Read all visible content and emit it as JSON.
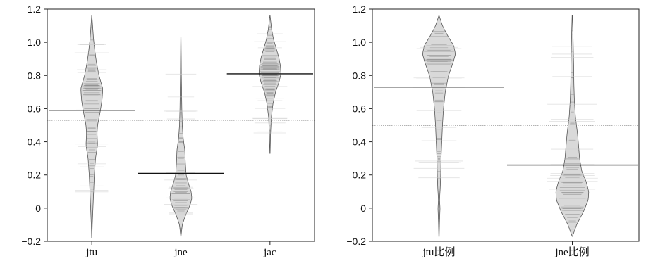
{
  "chart_data": [
    {
      "type": "beanplot",
      "categories": [
        "jtu",
        "jne",
        "jac"
      ],
      "ylim": [
        -0.2,
        1.2
      ],
      "yticks": [
        -0.2,
        0,
        0.2,
        0.4,
        0.6,
        0.8,
        1.0,
        1.2
      ],
      "ytick_labels": [
        "−0.2",
        "0",
        "0.2",
        "0.4",
        "0.6",
        "0.8",
        "1.0",
        "1.2"
      ],
      "overall_mean": 0.53,
      "series": [
        {
          "category": "jtu",
          "mean": 0.59,
          "range": [
            -0.18,
            1.16
          ],
          "density": [
            [
              -0.18,
              0.01
            ],
            [
              -0.1,
              0.04
            ],
            [
              0.0,
              0.1
            ],
            [
              0.1,
              0.16
            ],
            [
              0.2,
              0.22
            ],
            [
              0.3,
              0.32
            ],
            [
              0.38,
              0.5
            ],
            [
              0.45,
              0.45
            ],
            [
              0.5,
              0.5
            ],
            [
              0.58,
              0.72
            ],
            [
              0.65,
              0.88
            ],
            [
              0.72,
              0.95
            ],
            [
              0.8,
              0.62
            ],
            [
              0.88,
              0.4
            ],
            [
              0.95,
              0.26
            ],
            [
              1.02,
              0.15
            ],
            [
              1.1,
              0.07
            ],
            [
              1.16,
              0.01
            ]
          ]
        },
        {
          "category": "jne",
          "mean": 0.21,
          "range": [
            -0.17,
            1.03
          ],
          "density": [
            [
              -0.17,
              0.01
            ],
            [
              -0.1,
              0.12
            ],
            [
              -0.04,
              0.42
            ],
            [
              0.02,
              0.8
            ],
            [
              0.06,
              0.95
            ],
            [
              0.1,
              0.88
            ],
            [
              0.15,
              0.65
            ],
            [
              0.2,
              0.45
            ],
            [
              0.28,
              0.38
            ],
            [
              0.35,
              0.34
            ],
            [
              0.42,
              0.2
            ],
            [
              0.5,
              0.12
            ],
            [
              0.6,
              0.08
            ],
            [
              0.7,
              0.06
            ],
            [
              0.8,
              0.04
            ],
            [
              0.9,
              0.03
            ],
            [
              1.03,
              0.01
            ]
          ]
        },
        {
          "category": "jac",
          "mean": 0.81,
          "range": [
            0.33,
            1.16
          ],
          "density": [
            [
              0.33,
              0.01
            ],
            [
              0.45,
              0.05
            ],
            [
              0.55,
              0.12
            ],
            [
              0.63,
              0.26
            ],
            [
              0.7,
              0.48
            ],
            [
              0.76,
              0.78
            ],
            [
              0.81,
              0.95
            ],
            [
              0.86,
              0.9
            ],
            [
              0.91,
              0.76
            ],
            [
              0.96,
              0.55
            ],
            [
              1.02,
              0.3
            ],
            [
              1.08,
              0.14
            ],
            [
              1.16,
              0.01
            ]
          ]
        }
      ]
    },
    {
      "type": "beanplot",
      "categories": [
        "jtu比例",
        "jne比例"
      ],
      "ylim": [
        -0.2,
        1.2
      ],
      "yticks": [
        -0.2,
        0,
        0.2,
        0.4,
        0.6,
        0.8,
        1.0,
        1.2
      ],
      "ytick_labels": [
        "−0.2",
        "0",
        "0.2",
        "0.4",
        "0.6",
        "0.8",
        "1.0",
        "1.2"
      ],
      "overall_mean": 0.5,
      "series": [
        {
          "category": "jtu比例",
          "mean": 0.73,
          "range": [
            -0.17,
            1.16
          ],
          "density": [
            [
              -0.17,
              0.01
            ],
            [
              -0.08,
              0.03
            ],
            [
              0.0,
              0.06
            ],
            [
              0.05,
              0.03
            ],
            [
              0.12,
              0.07
            ],
            [
              0.2,
              0.1
            ],
            [
              0.3,
              0.12
            ],
            [
              0.4,
              0.16
            ],
            [
              0.5,
              0.2
            ],
            [
              0.6,
              0.26
            ],
            [
              0.7,
              0.36
            ],
            [
              0.8,
              0.55
            ],
            [
              0.88,
              0.82
            ],
            [
              0.93,
              0.95
            ],
            [
              0.98,
              0.85
            ],
            [
              1.04,
              0.5
            ],
            [
              1.1,
              0.2
            ],
            [
              1.16,
              0.01
            ]
          ]
        },
        {
          "category": "jne比例",
          "mean": 0.26,
          "range": [
            -0.17,
            1.16
          ],
          "density": [
            [
              -0.17,
              0.01
            ],
            [
              -0.1,
              0.25
            ],
            [
              -0.02,
              0.65
            ],
            [
              0.05,
              0.92
            ],
            [
              0.1,
              0.95
            ],
            [
              0.16,
              0.8
            ],
            [
              0.22,
              0.55
            ],
            [
              0.3,
              0.42
            ],
            [
              0.38,
              0.36
            ],
            [
              0.45,
              0.3
            ],
            [
              0.55,
              0.18
            ],
            [
              0.65,
              0.12
            ],
            [
              0.75,
              0.09
            ],
            [
              0.85,
              0.08
            ],
            [
              0.95,
              0.06
            ],
            [
              1.05,
              0.04
            ],
            [
              1.16,
              0.01
            ]
          ]
        }
      ]
    }
  ]
}
